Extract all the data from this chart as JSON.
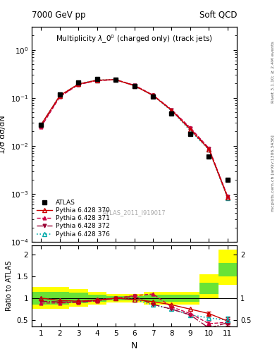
{
  "title_left": "7000 GeV pp",
  "title_right": "Soft QCD",
  "plot_title": "Multiplicity $\\lambda\\_0^0$ (charged only) (track jets)",
  "watermark": "ATLAS_2011_I919017",
  "right_label_top": "Rivet 3.1.10; ≥ 2.4M events",
  "right_label_bot": "mcplots.cern.ch [arXiv:1306.3436]",
  "xlabel": "N",
  "ylabel_main": "1/σ dσ/dN",
  "ylabel_ratio": "Ratio to ATLAS",
  "N_atlas": [
    1,
    2,
    3,
    4,
    5,
    6,
    7,
    8,
    9,
    10,
    11
  ],
  "y_atlas": [
    0.028,
    0.118,
    0.21,
    0.245,
    0.24,
    0.175,
    0.105,
    0.048,
    0.018,
    0.006,
    0.002
  ],
  "N_mc": [
    1,
    2,
    3,
    4,
    5,
    6,
    7,
    8,
    9,
    10,
    11
  ],
  "y_370": [
    0.028,
    0.112,
    0.195,
    0.235,
    0.24,
    0.18,
    0.113,
    0.055,
    0.022,
    0.0085,
    0.00085
  ],
  "y_371": [
    0.025,
    0.105,
    0.19,
    0.23,
    0.24,
    0.185,
    0.115,
    0.057,
    0.024,
    0.009,
    0.0009
  ],
  "y_372": [
    0.026,
    0.108,
    0.192,
    0.232,
    0.24,
    0.182,
    0.114,
    0.056,
    0.023,
    0.0088,
    0.00088
  ],
  "y_376": [
    0.028,
    0.112,
    0.196,
    0.236,
    0.241,
    0.18,
    0.112,
    0.054,
    0.021,
    0.0083,
    0.00083
  ],
  "ratio_370": [
    1.0,
    0.95,
    0.93,
    0.96,
    1.0,
    0.97,
    0.92,
    0.85,
    0.75,
    0.65,
    0.48
  ],
  "ratio_371": [
    0.89,
    0.89,
    0.905,
    0.939,
    1.0,
    1.057,
    1.095,
    0.8,
    0.65,
    0.42,
    0.45
  ],
  "ratio_372": [
    0.93,
    0.915,
    0.914,
    0.945,
    1.0,
    1.04,
    0.86,
    0.75,
    0.62,
    0.32,
    0.44
  ],
  "ratio_376": [
    1.0,
    0.95,
    0.933,
    0.963,
    1.004,
    0.97,
    0.85,
    0.75,
    0.62,
    0.55,
    0.5
  ],
  "band_x_edges": [
    0.5,
    1.5,
    2.5,
    3.5,
    4.5,
    5.5,
    6.5,
    7.5,
    8.5,
    9.5,
    10.5,
    11.5
  ],
  "band_yellow_lo": [
    0.75,
    0.75,
    0.8,
    0.85,
    0.9,
    0.9,
    0.85,
    0.85,
    0.85,
    1.0,
    1.3
  ],
  "band_yellow_hi": [
    1.25,
    1.25,
    1.2,
    1.15,
    1.1,
    1.1,
    1.15,
    1.15,
    1.15,
    1.55,
    2.1
  ],
  "band_green_lo": [
    0.85,
    0.85,
    0.88,
    0.92,
    0.95,
    0.95,
    0.92,
    0.92,
    0.92,
    1.1,
    1.5
  ],
  "band_green_hi": [
    1.15,
    1.15,
    1.12,
    1.08,
    1.05,
    1.05,
    1.08,
    1.08,
    1.08,
    1.35,
    1.8
  ],
  "color_370": "#cc0000",
  "color_371": "#cc0044",
  "color_372": "#990033",
  "color_376": "#00aaaa",
  "color_atlas": "#000000",
  "color_yellow": "#ffff00",
  "color_green": "#44dd44",
  "ylim_main": [
    0.0001,
    3.0
  ],
  "ylim_ratio": [
    0.35,
    2.2
  ],
  "xlim_main": [
    0.5,
    11.5
  ],
  "xlim_ratio": [
    0.5,
    11.5
  ]
}
